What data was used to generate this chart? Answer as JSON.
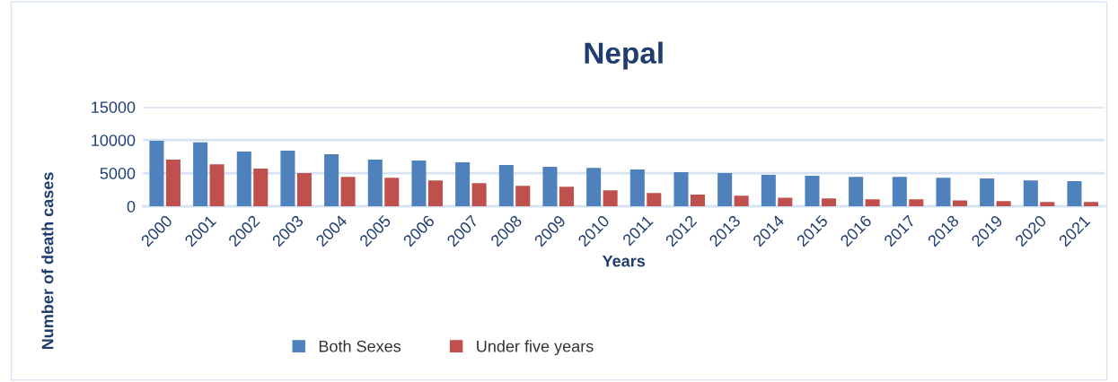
{
  "chart_data": {
    "type": "bar",
    "title": "Nepal",
    "xlabel": "Years",
    "ylabel": "Number of death cases",
    "categories": [
      "2000",
      "2001",
      "2002",
      "2003",
      "2004",
      "2005",
      "2006",
      "2007",
      "2008",
      "2009",
      "2010",
      "2011",
      "2012",
      "2013",
      "2014",
      "2015",
      "2016",
      "2017",
      "2018",
      "2019",
      "2020",
      "2021"
    ],
    "series": [
      {
        "name": "Both Sexes",
        "color": "#4f81bd",
        "values": [
          9900,
          9650,
          8250,
          8400,
          7850,
          7050,
          6900,
          6650,
          6250,
          5950,
          5800,
          5550,
          5150,
          5000,
          4750,
          4600,
          4450,
          4450,
          4300,
          4200,
          3900,
          3800
        ]
      },
      {
        "name": "Under five years",
        "color": "#c0504d",
        "values": [
          7050,
          6350,
          5700,
          5000,
          4450,
          4300,
          3900,
          3500,
          3100,
          2950,
          2400,
          2000,
          1750,
          1600,
          1300,
          1200,
          1050,
          1050,
          900,
          800,
          650,
          650
        ]
      }
    ],
    "ylim": [
      0,
      15000
    ],
    "yticks": [
      0,
      5000,
      10000,
      15000
    ],
    "grid": "y",
    "legend": "bottom left"
  }
}
